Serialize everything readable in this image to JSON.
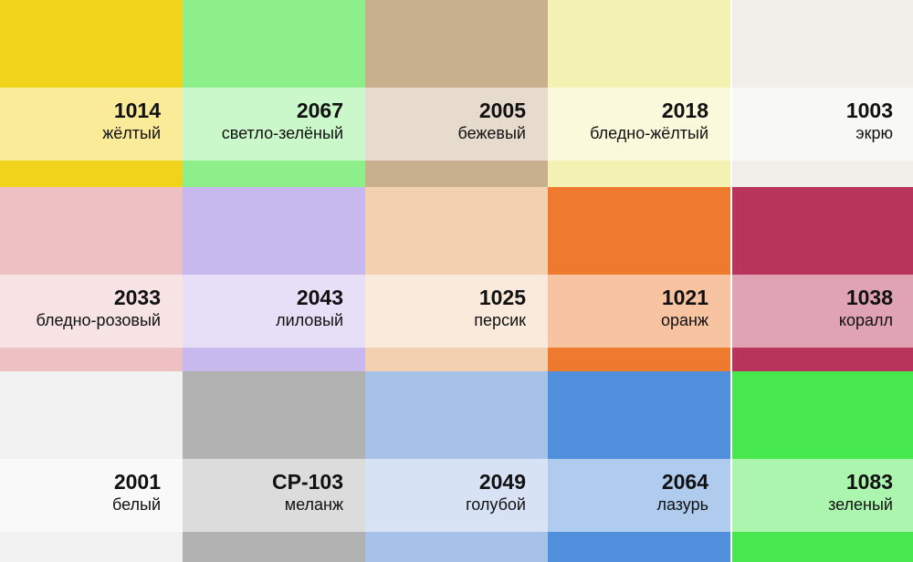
{
  "swatches": [
    {
      "code": "1014",
      "name": "жёлтый",
      "color": "#f2d31b"
    },
    {
      "code": "2067",
      "name": "светло-зелёный",
      "color": "#8cef8a"
    },
    {
      "code": "2005",
      "name": "бежевый",
      "color": "#c8af8e"
    },
    {
      "code": "2018",
      "name": "бледно-жёлтый",
      "color": "#f4f2b2"
    },
    {
      "code": "1003",
      "name": "экрю",
      "color": "#f0efe9"
    },
    {
      "code": "2033",
      "name": "бледно-розовый",
      "color": "#efc0c3"
    },
    {
      "code": "2043",
      "name": "лиловый",
      "color": "#c7b8ee"
    },
    {
      "code": "1025",
      "name": "персик",
      "color": "#f3d1b0"
    },
    {
      "code": "1021",
      "name": "оранж",
      "color": "#ed7a2f"
    },
    {
      "code": "1038",
      "name": "коралл",
      "color": "#b8345a"
    },
    {
      "code": "2001",
      "name": "белый",
      "color": "#f2f2f2"
    },
    {
      "code": "СР-103",
      "name": "меланж",
      "color": "#b1b1b1"
    },
    {
      "code": "2049",
      "name": "голубой",
      "color": "#a6c2e8"
    },
    {
      "code": "2064",
      "name": "лазурь",
      "color": "#4f8fdc"
    },
    {
      "code": "1083",
      "name": "зеленый",
      "color": "#46e84d"
    }
  ]
}
